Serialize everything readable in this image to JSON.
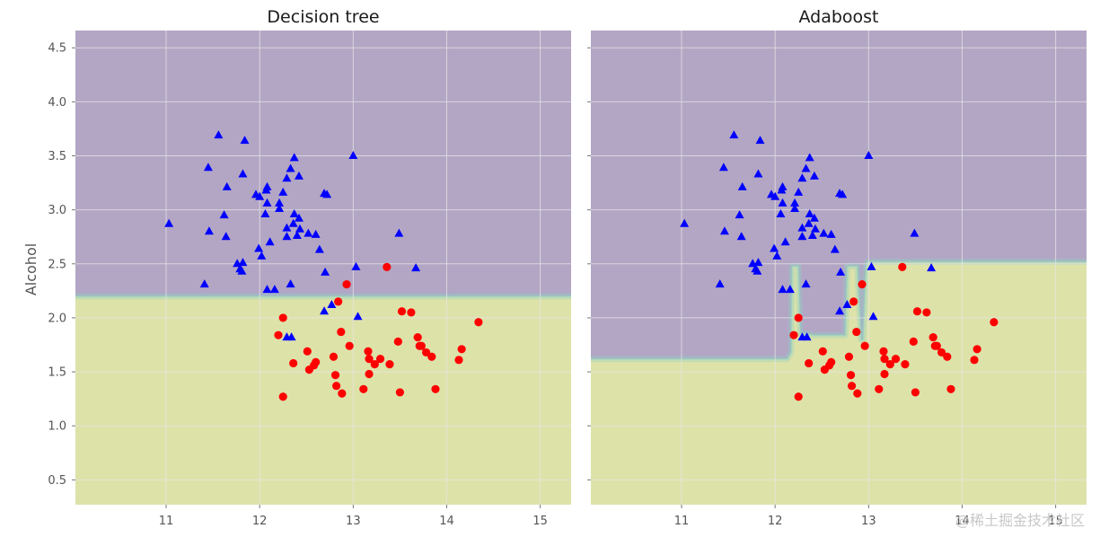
{
  "figure": {
    "ylabel": "Alcohol",
    "watermark": "@稀土掘金技术社区",
    "colors": {
      "region_class0": "#b3a6c4",
      "region_class1": "#dde2a9",
      "boundary_band": "#8fcfc2",
      "grid": "#e6e6e6",
      "class0_marker": "#0000ff",
      "class1_marker": "#ff0000"
    },
    "marker_icons": {
      "class0": "triangle-icon",
      "class1": "circle-icon"
    }
  },
  "chart_data": [
    {
      "type": "scatter",
      "title": "Decision tree",
      "xlabel": "",
      "ylabel": "Alcohol",
      "xlim": [
        10.03,
        15.33
      ],
      "ylim": [
        0.27,
        4.66
      ],
      "xticks": [
        11,
        12,
        13,
        14,
        15
      ],
      "yticks": [
        0.5,
        1.0,
        1.5,
        2.0,
        2.5,
        3.0,
        3.5,
        4.0,
        4.5
      ],
      "show_ytick_labels": true,
      "grid": true,
      "decision_boundary": [
        [
          10.03,
          2.2
        ],
        [
          15.33,
          2.2
        ]
      ],
      "regions": {
        "above": "class_0",
        "below": "class_1"
      }
    },
    {
      "type": "scatter",
      "title": "Adaboost",
      "xlabel": "",
      "ylabel": "",
      "xlim": [
        10.03,
        15.33
      ],
      "ylim": [
        0.27,
        4.66
      ],
      "xticks": [
        11,
        12,
        13,
        14,
        15
      ],
      "yticks": [
        0.5,
        1.0,
        1.5,
        2.0,
        2.5,
        3.0,
        3.5,
        4.0,
        4.5
      ],
      "show_ytick_labels": false,
      "grid": true,
      "decision_boundary": [
        [
          10.03,
          1.62
        ],
        [
          12.13,
          1.62
        ],
        [
          12.17,
          1.68
        ],
        [
          12.18,
          2.48
        ],
        [
          12.25,
          2.48
        ],
        [
          12.27,
          1.86
        ],
        [
          12.42,
          1.84
        ],
        [
          12.75,
          1.84
        ],
        [
          12.77,
          2.48
        ],
        [
          12.88,
          2.48
        ],
        [
          12.92,
          1.8
        ],
        [
          12.94,
          1.8
        ],
        [
          12.97,
          2.48
        ],
        [
          12.99,
          2.52
        ],
        [
          15.33,
          2.52
        ]
      ],
      "regions": {
        "above": "class_0",
        "below": "class_1"
      }
    }
  ],
  "points": {
    "class0": [
      [
        11.56,
        3.69
      ],
      [
        11.84,
        3.64
      ],
      [
        12.37,
        3.48
      ],
      [
        11.45,
        3.39
      ],
      [
        12.33,
        3.38
      ],
      [
        11.82,
        3.33
      ],
      [
        12.29,
        3.29
      ],
      [
        12.42,
        3.31
      ],
      [
        13.0,
        3.5
      ],
      [
        11.65,
        3.21
      ],
      [
        12.08,
        3.21
      ],
      [
        12.07,
        3.18
      ],
      [
        12.25,
        3.16
      ],
      [
        11.96,
        3.14
      ],
      [
        12.0,
        3.12
      ],
      [
        12.08,
        3.06
      ],
      [
        12.69,
        3.15
      ],
      [
        12.72,
        3.14
      ],
      [
        12.21,
        3.06
      ],
      [
        12.21,
        3.01
      ],
      [
        12.06,
        2.96
      ],
      [
        12.37,
        2.96
      ],
      [
        11.62,
        2.95
      ],
      [
        12.42,
        2.92
      ],
      [
        12.36,
        2.87
      ],
      [
        11.03,
        2.87
      ],
      [
        12.29,
        2.83
      ],
      [
        12.43,
        2.82
      ],
      [
        12.52,
        2.78
      ],
      [
        12.6,
        2.77
      ],
      [
        11.46,
        2.8
      ],
      [
        12.4,
        2.76
      ],
      [
        13.49,
        2.78
      ],
      [
        12.29,
        2.75
      ],
      [
        11.64,
        2.75
      ],
      [
        12.11,
        2.7
      ],
      [
        12.64,
        2.63
      ],
      [
        11.99,
        2.64
      ],
      [
        12.02,
        2.57
      ],
      [
        11.76,
        2.5
      ],
      [
        11.82,
        2.51
      ],
      [
        13.03,
        2.47
      ],
      [
        13.67,
        2.46
      ],
      [
        11.79,
        2.45
      ],
      [
        11.81,
        2.43
      ],
      [
        12.7,
        2.42
      ],
      [
        11.41,
        2.31
      ],
      [
        12.33,
        2.31
      ],
      [
        12.08,
        2.26
      ],
      [
        12.16,
        2.26
      ],
      [
        12.77,
        2.12
      ],
      [
        12.69,
        2.06
      ],
      [
        13.05,
        2.01
      ],
      [
        12.29,
        1.82
      ],
      [
        12.34,
        1.82
      ]
    ],
    "class1": [
      [
        13.36,
        2.47
      ],
      [
        12.93,
        2.31
      ],
      [
        12.84,
        2.15
      ],
      [
        13.52,
        2.06
      ],
      [
        13.62,
        2.05
      ],
      [
        12.25,
        2.0
      ],
      [
        14.34,
        1.96
      ],
      [
        12.87,
        1.87
      ],
      [
        12.2,
        1.84
      ],
      [
        13.69,
        1.82
      ],
      [
        13.48,
        1.78
      ],
      [
        13.71,
        1.74
      ],
      [
        13.73,
        1.74
      ],
      [
        12.96,
        1.74
      ],
      [
        14.16,
        1.71
      ],
      [
        13.16,
        1.69
      ],
      [
        12.51,
        1.69
      ],
      [
        13.78,
        1.68
      ],
      [
        13.84,
        1.64
      ],
      [
        12.79,
        1.64
      ],
      [
        13.17,
        1.62
      ],
      [
        13.29,
        1.62
      ],
      [
        12.6,
        1.59
      ],
      [
        12.36,
        1.58
      ],
      [
        13.23,
        1.57
      ],
      [
        13.39,
        1.57
      ],
      [
        12.58,
        1.56
      ],
      [
        14.13,
        1.61
      ],
      [
        12.53,
        1.52
      ],
      [
        12.81,
        1.47
      ],
      [
        13.17,
        1.48
      ],
      [
        12.82,
        1.37
      ],
      [
        13.11,
        1.34
      ],
      [
        13.88,
        1.34
      ],
      [
        12.88,
        1.3
      ],
      [
        13.5,
        1.31
      ],
      [
        12.25,
        1.27
      ]
    ]
  }
}
